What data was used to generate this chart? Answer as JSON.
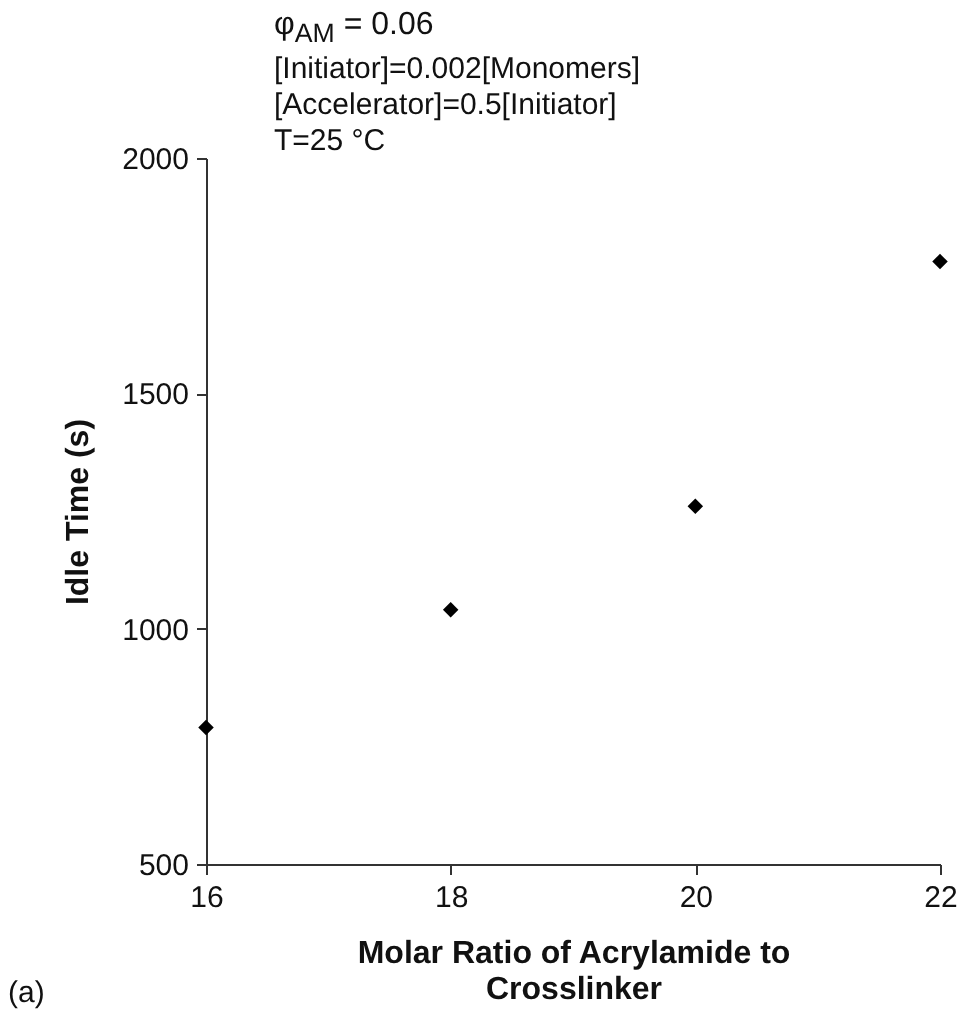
{
  "chart_data": {
    "type": "scatter",
    "xlabel": "Molar Ratio of Acrylamide to Crosslinker",
    "ylabel": "Idle Time (s)",
    "x": [
      16,
      18,
      20,
      22
    ],
    "series": [
      {
        "color": "#000000",
        "values": [
          790,
          1040,
          1260,
          1780
        ]
      }
    ],
    "xlim": [
      16,
      22
    ],
    "xticks": [
      16,
      18,
      20,
      22
    ],
    "ylim": [
      500,
      2000
    ],
    "yticks": [
      500,
      1000,
      1500,
      2000
    ],
    "grid": false,
    "legend": false,
    "marker": "diamond",
    "annotations": [
      "φ$_{AM}$ = 0.06",
      "[Initiator]=0.002[Monomers]",
      "[Accelerator]=0.5[Initiator]",
      "T=25 °C",
      "(a)"
    ]
  }
}
